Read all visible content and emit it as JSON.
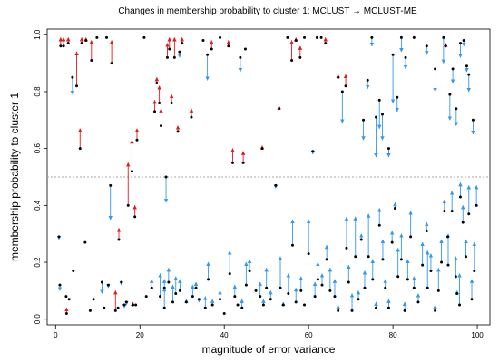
{
  "chart_data": {
    "type": "scatter",
    "title": "Changes in membership probability to cluster 1: MCLUST → MCLUST-ME",
    "xlabel": "magnitude of error variance",
    "ylabel": "membership probability to cluster 1",
    "xlim": [
      -2,
      103
    ],
    "ylim": [
      -0.02,
      1.02
    ],
    "xticks": [
      "0",
      "20",
      "40",
      "60",
      "80",
      "100"
    ],
    "yticks": [
      "0.0",
      "0.2",
      "0.4",
      "0.6",
      "0.8",
      "1.0"
    ],
    "threshold": 0.5,
    "grid": false,
    "colors": {
      "increase": "#e41a1c",
      "decrease": "#3399ee",
      "point": "#000000",
      "threshold": "#aaaaaa"
    },
    "arrows": [
      [
        0.8,
        0.29,
        0.28
      ],
      [
        1.0,
        0.12,
        0.1
      ],
      [
        1.2,
        0.96,
        0.99
      ],
      [
        1.9,
        0.96,
        0.99
      ],
      [
        2.6,
        0.02,
        0.04
      ],
      [
        3.0,
        0.97,
        0.99
      ],
      [
        4.0,
        0.85,
        0.79
      ],
      [
        5.0,
        0.82,
        0.94
      ],
      [
        5.8,
        0.6,
        0.67
      ],
      [
        6.2,
        0.97,
        0.99
      ],
      [
        7.2,
        0.98,
        0.99
      ],
      [
        8.5,
        0.91,
        0.98
      ],
      [
        9.8,
        0.99,
        0.99
      ],
      [
        11.0,
        0.13,
        0.09
      ],
      [
        12.1,
        0.99,
        0.99
      ],
      [
        13.3,
        0.9,
        0.98
      ],
      [
        13.0,
        0.47,
        0.35
      ],
      [
        14.2,
        0.03,
        0.1
      ],
      [
        15.0,
        0.28,
        0.32
      ],
      [
        15.6,
        0.13,
        0.12
      ],
      [
        16.3,
        0.05,
        0.04
      ],
      [
        17.2,
        0.4,
        0.55
      ],
      [
        18.1,
        0.52,
        0.63
      ],
      [
        18.8,
        0.36,
        0.4
      ],
      [
        19.3,
        0.63,
        0.67
      ],
      [
        21.0,
        0.99,
        0.99
      ],
      [
        23.5,
        0.73,
        0.77
      ],
      [
        24.0,
        0.83,
        0.85
      ],
      [
        24.6,
        0.76,
        0.82
      ],
      [
        25.0,
        0.68,
        0.74
      ],
      [
        25.8,
        0.04,
        0.11
      ],
      [
        26.2,
        0.5,
        0.41
      ],
      [
        26.5,
        0.92,
        0.97
      ],
      [
        27.0,
        0.95,
        0.99
      ],
      [
        27.5,
        0.76,
        0.79
      ],
      [
        28.2,
        0.92,
        0.99
      ],
      [
        29.0,
        0.66,
        0.68
      ],
      [
        29.4,
        0.94,
        0.92
      ],
      [
        30.0,
        0.97,
        0.99
      ],
      [
        32.2,
        0.71,
        0.74
      ],
      [
        34.0,
        0.07,
        0.06
      ],
      [
        35.0,
        0.98,
        0.98
      ],
      [
        36.0,
        0.93,
        0.84
      ],
      [
        37.0,
        0.95,
        0.98
      ],
      [
        39.0,
        0.99,
        0.99
      ],
      [
        41.0,
        0.96,
        0.98
      ],
      [
        42.0,
        0.55,
        0.6
      ],
      [
        43.8,
        0.92,
        0.87
      ],
      [
        44.5,
        0.55,
        0.59
      ],
      [
        45.0,
        0.95,
        0.95
      ],
      [
        49.0,
        0.6,
        0.61
      ],
      [
        53.0,
        0.74,
        0.75
      ],
      [
        55.0,
        0.99,
        0.99
      ],
      [
        56.0,
        0.91,
        0.98
      ],
      [
        57.0,
        0.98,
        0.99
      ],
      [
        58.0,
        0.92,
        0.96
      ],
      [
        59.0,
        0.99,
        0.99
      ],
      [
        61.0,
        0.59,
        0.58
      ],
      [
        62.0,
        0.99,
        0.99
      ],
      [
        63.0,
        0.99,
        0.99
      ],
      [
        64.0,
        0.97,
        0.99
      ],
      [
        67.0,
        0.85,
        0.86
      ],
      [
        68.0,
        0.8,
        0.69
      ],
      [
        68.8,
        0.82,
        0.86
      ],
      [
        73.0,
        0.7,
        0.63
      ],
      [
        74.0,
        0.84,
        0.81
      ],
      [
        75.0,
        0.99,
        0.96
      ],
      [
        76.0,
        0.71,
        0.57
      ],
      [
        76.8,
        0.77,
        0.67
      ],
      [
        77.5,
        0.72,
        0.63
      ],
      [
        79.0,
        0.6,
        0.57
      ],
      [
        80.0,
        0.93,
        0.76
      ],
      [
        81.0,
        0.78,
        0.73
      ],
      [
        82.0,
        0.99,
        0.94
      ],
      [
        83.0,
        0.92,
        0.88
      ],
      [
        85.0,
        0.99,
        0.99
      ],
      [
        88.0,
        0.96,
        0.93
      ],
      [
        90.0,
        0.88,
        0.8
      ],
      [
        92.0,
        0.99,
        0.9
      ],
      [
        92.5,
        0.96,
        0.97
      ],
      [
        93.5,
        0.79,
        0.7
      ],
      [
        94.2,
        0.88,
        0.83
      ],
      [
        95.0,
        0.74,
        0.68
      ],
      [
        96.0,
        0.97,
        0.92
      ],
      [
        96.8,
        0.98,
        0.96
      ],
      [
        97.5,
        0.89,
        0.87
      ],
      [
        98.0,
        0.86,
        0.8
      ],
      [
        99.0,
        0.7,
        0.65
      ],
      [
        2.5,
        0.08,
        0.08
      ],
      [
        3.2,
        0.07,
        0.07
      ],
      [
        4.2,
        0.17,
        0.17
      ],
      [
        7.0,
        0.27,
        0.27
      ],
      [
        8.2,
        0.03,
        0.03
      ],
      [
        9.0,
        0.07,
        0.07
      ],
      [
        11.5,
        0.04,
        0.04
      ],
      [
        12.5,
        0.12,
        0.11
      ],
      [
        14.8,
        0.04,
        0.04
      ],
      [
        16.8,
        0.06,
        0.05
      ],
      [
        18.3,
        0.05,
        0.06
      ],
      [
        19.0,
        0.05,
        0.05
      ],
      [
        21.5,
        0.08,
        0.08
      ],
      [
        22.8,
        0.11,
        0.14
      ],
      [
        24.8,
        0.08,
        0.16
      ],
      [
        25.8,
        0.11,
        0.14
      ],
      [
        26.8,
        0.13,
        0.18
      ],
      [
        27.8,
        0.06,
        0.12
      ],
      [
        28.5,
        0.09,
        0.15
      ],
      [
        29.5,
        0.1,
        0.14
      ],
      [
        31.0,
        0.06,
        0.07
      ],
      [
        32.5,
        0.08,
        0.12
      ],
      [
        33.3,
        0.11,
        0.13
      ],
      [
        35.5,
        0.04,
        0.08
      ],
      [
        36.2,
        0.14,
        0.2
      ],
      [
        37.2,
        0.05,
        0.07
      ],
      [
        39.0,
        0.07,
        0.1
      ],
      [
        40.0,
        0.02,
        0.02
      ],
      [
        41.3,
        0.16,
        0.24
      ],
      [
        42.5,
        0.08,
        0.12
      ],
      [
        43.2,
        0.05,
        0.05
      ],
      [
        44.2,
        0.04,
        0.07
      ],
      [
        45.2,
        0.12,
        0.2
      ],
      [
        46.0,
        0.17,
        0.21
      ],
      [
        47.5,
        0.1,
        0.1
      ],
      [
        48.5,
        0.08,
        0.13
      ],
      [
        49.3,
        0.05,
        0.07
      ],
      [
        50.0,
        0.11,
        0.18
      ],
      [
        51.0,
        0.07,
        0.1
      ],
      [
        52.2,
        0.47,
        0.46
      ],
      [
        53.3,
        0.11,
        0.22
      ],
      [
        54.0,
        0.05,
        0.06
      ],
      [
        55.2,
        0.09,
        0.16
      ],
      [
        56.2,
        0.26,
        0.35
      ],
      [
        57.0,
        0.06,
        0.11
      ],
      [
        58.2,
        0.1,
        0.15
      ],
      [
        59.0,
        0.05,
        0.05
      ],
      [
        60.0,
        0.23,
        0.35
      ],
      [
        61.5,
        0.08,
        0.13
      ],
      [
        62.2,
        0.14,
        0.2
      ],
      [
        63.2,
        0.12,
        0.16
      ],
      [
        64.3,
        0.21,
        0.26
      ],
      [
        65.1,
        0.1,
        0.18
      ],
      [
        66.2,
        0.08,
        0.14
      ],
      [
        67.0,
        0.03,
        0.05
      ],
      [
        69.0,
        0.25,
        0.36
      ],
      [
        69.5,
        0.13,
        0.19
      ],
      [
        70.3,
        0.03,
        0.09
      ],
      [
        71.1,
        0.22,
        0.36
      ],
      [
        71.8,
        0.07,
        0.1
      ],
      [
        72.5,
        0.28,
        0.3
      ],
      [
        73.3,
        0.11,
        0.17
      ],
      [
        74.2,
        0.22,
        0.37
      ],
      [
        75.2,
        0.14,
        0.21
      ],
      [
        76.0,
        0.04,
        0.06
      ],
      [
        76.8,
        0.33,
        0.39
      ],
      [
        77.6,
        0.21,
        0.28
      ],
      [
        78.2,
        0.11,
        0.14
      ],
      [
        79.0,
        0.04,
        0.07
      ],
      [
        79.8,
        0.27,
        0.31
      ],
      [
        80.5,
        0.39,
        0.41
      ],
      [
        81.2,
        0.15,
        0.25
      ],
      [
        82.0,
        0.21,
        0.3
      ],
      [
        82.8,
        0.03,
        0.06
      ],
      [
        83.5,
        0.14,
        0.21
      ],
      [
        84.2,
        0.29,
        0.38
      ],
      [
        85.0,
        0.11,
        0.15
      ],
      [
        86.0,
        0.06,
        0.09
      ],
      [
        87.0,
        0.19,
        0.27
      ],
      [
        88.2,
        0.11,
        0.24
      ],
      [
        89.0,
        0.17,
        0.23
      ],
      [
        90.0,
        0.03,
        0.05
      ],
      [
        90.8,
        0.1,
        0.18
      ],
      [
        91.5,
        0.2,
        0.28
      ],
      [
        92.2,
        0.38,
        0.42
      ],
      [
        93.1,
        0.19,
        0.3
      ],
      [
        94.0,
        0.38,
        0.45
      ],
      [
        94.9,
        0.15,
        0.22
      ],
      [
        95.8,
        0.05,
        0.16
      ],
      [
        96.6,
        0.34,
        0.4
      ],
      [
        97.3,
        0.22,
        0.28
      ],
      [
        98.0,
        0.37,
        0.47
      ],
      [
        98.7,
        0.07,
        0.14
      ],
      [
        99.3,
        0.17,
        0.27
      ],
      [
        99.8,
        0.4,
        0.47
      ],
      [
        96.0,
        0.43,
        0.48
      ],
      [
        93.0,
        0.29,
        0.29
      ],
      [
        88.0,
        0.31,
        0.34
      ],
      [
        95.2,
        0.09,
        0.1
      ]
    ]
  }
}
